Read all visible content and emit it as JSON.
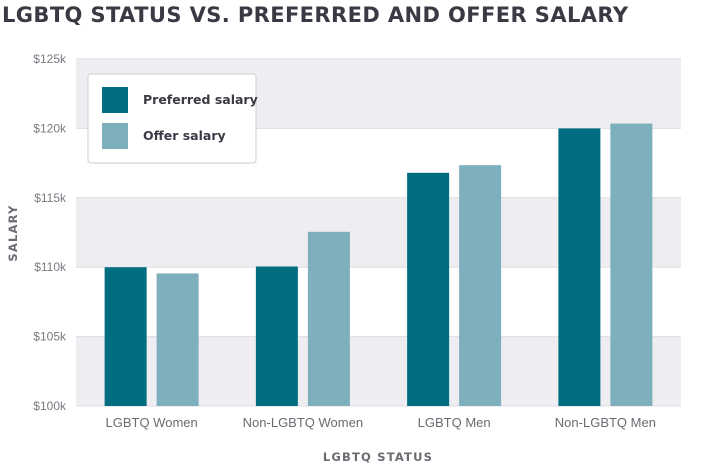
{
  "chart_data": {
    "type": "bar",
    "title": "LGBTQ STATUS VS. PREFERRED AND OFFER SALARY",
    "xlabel": "LGBTQ STATUS",
    "ylabel": "SALARY",
    "categories": [
      "LGBTQ Women",
      "Non-LGBTQ Women",
      "LGBTQ Men",
      "Non-LGBTQ Men"
    ],
    "series": [
      {
        "name": "Preferred salary",
        "color": "#006e80",
        "values": [
          110000,
          110050,
          116800,
          120000
        ]
      },
      {
        "name": "Offer salary",
        "color": "#7eafbd",
        "values": [
          109550,
          112550,
          117350,
          120350
        ]
      }
    ],
    "ylim": [
      100000,
      125000
    ],
    "yticks": [
      100000,
      105000,
      110000,
      115000,
      120000,
      125000
    ],
    "ytick_labels": [
      "$100k",
      "$105k",
      "$110k",
      "$115k",
      "$120k",
      "$125k"
    ],
    "grid": "horizontal bands",
    "legend": "top-left",
    "colors": {
      "band": "#eeeef2",
      "gridline": "#dcdce2",
      "text": "#3a3a44"
    }
  }
}
